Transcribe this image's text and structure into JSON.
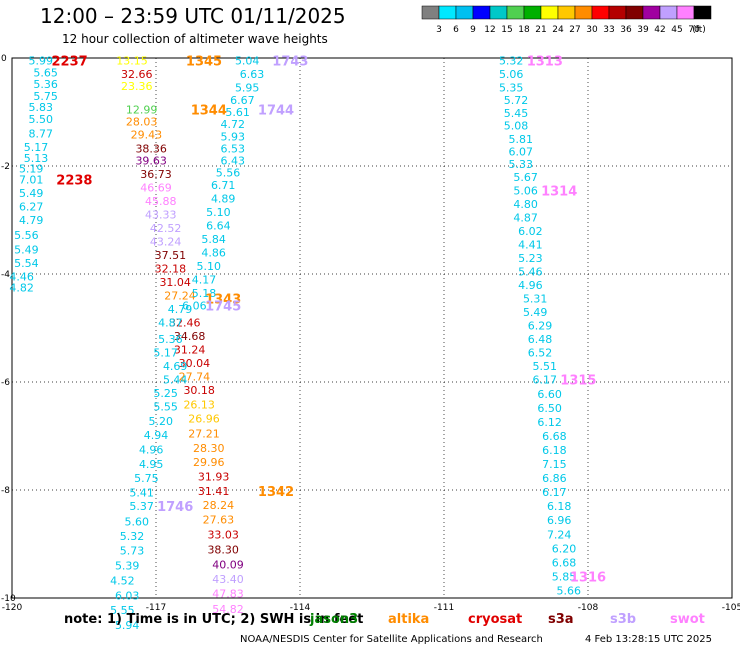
{
  "header": {
    "title": "12:00 – 23:59 UTC 01/11/2025",
    "subtitle": "12 hour collection of altimeter wave heights"
  },
  "scale": {
    "colors": [
      "#808080",
      "#00e8ff",
      "#00c0f0",
      "#0000ff",
      "#00c8c8",
      "#50d050",
      "#00b000",
      "#ffff00",
      "#ffc800",
      "#ff8c00",
      "#ff0000",
      "#b40000",
      "#800000",
      "#a000a0",
      "#c0a0ff",
      "#ff80ff",
      "#000000"
    ],
    "labels": [
      "3",
      "6",
      "9",
      "12",
      "15",
      "18",
      "21",
      "24",
      "27",
      "30",
      "33",
      "36",
      "39",
      "42",
      "45",
      "70",
      "(ft)"
    ]
  },
  "chart_data": {
    "type": "scatter",
    "title": "12:00 – 23:59 UTC 01/11/2025",
    "subtitle": "12 hour collection of altimeter wave heights",
    "xlabel": "",
    "ylabel": "",
    "xlim": [
      -120,
      -105
    ],
    "ylim": [
      -10,
      0
    ],
    "xticks": [
      -120,
      -117,
      -114,
      -111,
      -108,
      -105
    ],
    "yticks": [
      0,
      -2,
      -4,
      -6,
      -8,
      -10
    ],
    "xtick_labels": [
      "-120",
      "-117",
      "-114",
      "-111",
      "-108",
      "-105"
    ],
    "ytick_labels": [
      "0",
      "-2",
      "-4",
      "-6",
      "-8",
      "-10"
    ],
    "grid": true,
    "points": [
      {
        "x": -119.4,
        "y": -0.05,
        "v": "5.99",
        "c": "#00c8e8"
      },
      {
        "x": -119.3,
        "y": -0.27,
        "v": "5.65",
        "c": "#00c8e8"
      },
      {
        "x": -119.3,
        "y": -0.48,
        "v": "5.36",
        "c": "#00c8e8"
      },
      {
        "x": -119.3,
        "y": -0.7,
        "v": "5.75",
        "c": "#00c8e8"
      },
      {
        "x": -119.4,
        "y": -0.91,
        "v": "5.83",
        "c": "#00c8e8"
      },
      {
        "x": -119.4,
        "y": -1.13,
        "v": "5.50",
        "c": "#00c8e8"
      },
      {
        "x": -119.4,
        "y": -1.4,
        "v": "8.77",
        "c": "#00c8e8"
      },
      {
        "x": -119.5,
        "y": -1.65,
        "v": "5.17",
        "c": "#00c8e8"
      },
      {
        "x": -119.5,
        "y": -1.85,
        "v": "5.13",
        "c": "#00c8e8"
      },
      {
        "x": -119.6,
        "y": -2.05,
        "v": "5.19",
        "c": "#00c8e8"
      },
      {
        "x": -119.6,
        "y": -2.25,
        "v": "7.01",
        "c": "#00c8e8"
      },
      {
        "x": -119.6,
        "y": -2.5,
        "v": "5.49",
        "c": "#00c8e8"
      },
      {
        "x": -119.6,
        "y": -2.75,
        "v": "6.27",
        "c": "#00c8e8"
      },
      {
        "x": -119.6,
        "y": -3.0,
        "v": "4.79",
        "c": "#00c8e8"
      },
      {
        "x": -119.7,
        "y": -3.28,
        "v": "5.56",
        "c": "#00c8e8"
      },
      {
        "x": -119.7,
        "y": -3.55,
        "v": "5.49",
        "c": "#00c8e8"
      },
      {
        "x": -119.7,
        "y": -3.8,
        "v": "5.54",
        "c": "#00c8e8"
      },
      {
        "x": -119.8,
        "y": -4.05,
        "v": "4.46",
        "c": "#00c8e8"
      },
      {
        "x": -119.8,
        "y": -4.25,
        "v": "4.82",
        "c": "#00c8e8"
      },
      {
        "x": -117.5,
        "y": -0.05,
        "v": "13.15",
        "c": "#ffff00"
      },
      {
        "x": -117.4,
        "y": -0.3,
        "v": "32.66",
        "c": "#c80000"
      },
      {
        "x": -117.4,
        "y": -0.52,
        "v": "23.36",
        "c": "#ffff00"
      },
      {
        "x": -117.3,
        "y": -0.95,
        "v": "12.99",
        "c": "#50d050"
      },
      {
        "x": -117.3,
        "y": -1.18,
        "v": "28.03",
        "c": "#ff8c00"
      },
      {
        "x": -117.2,
        "y": -1.42,
        "v": "29.43",
        "c": "#ff8c00"
      },
      {
        "x": -117.1,
        "y": -1.68,
        "v": "38.36",
        "c": "#800000"
      },
      {
        "x": -117.1,
        "y": -1.9,
        "v": "39.63",
        "c": "#800080"
      },
      {
        "x": -117.0,
        "y": -2.15,
        "v": "36.73",
        "c": "#800000"
      },
      {
        "x": -117.0,
        "y": -2.4,
        "v": "46.69",
        "c": "#ff80ff"
      },
      {
        "x": -116.9,
        "y": -2.65,
        "v": "45.88",
        "c": "#ff80ff"
      },
      {
        "x": -116.9,
        "y": -2.9,
        "v": "43.33",
        "c": "#c0a0ff"
      },
      {
        "x": -116.8,
        "y": -3.15,
        "v": "42.52",
        "c": "#c0a0ff"
      },
      {
        "x": -116.8,
        "y": -3.4,
        "v": "43.24",
        "c": "#c0a0ff"
      },
      {
        "x": -116.7,
        "y": -3.65,
        "v": "37.51",
        "c": "#800000"
      },
      {
        "x": -116.7,
        "y": -3.9,
        "v": "32.18",
        "c": "#c80000"
      },
      {
        "x": -116.6,
        "y": -4.15,
        "v": "31.04",
        "c": "#c80000"
      },
      {
        "x": -116.5,
        "y": -4.4,
        "v": "27.24",
        "c": "#ff8c00"
      },
      {
        "x": -116.5,
        "y": -4.65,
        "v": "4.79",
        "c": "#00c8e8"
      },
      {
        "x": -116.4,
        "y": -4.9,
        "v": "32.46",
        "c": "#c80000"
      },
      {
        "x": -116.3,
        "y": -5.15,
        "v": "34.68",
        "c": "#800000"
      },
      {
        "x": -116.3,
        "y": -5.4,
        "v": "31.24",
        "c": "#c80000"
      },
      {
        "x": -116.2,
        "y": -5.65,
        "v": "30.04",
        "c": "#c80000"
      },
      {
        "x": -116.2,
        "y": -5.9,
        "v": "27.74",
        "c": "#ff8c00"
      },
      {
        "x": -116.1,
        "y": -6.15,
        "v": "30.18",
        "c": "#c80000"
      },
      {
        "x": -116.1,
        "y": -6.42,
        "v": "26.13",
        "c": "#ffc800"
      },
      {
        "x": -116.0,
        "y": -6.68,
        "v": "26.96",
        "c": "#ffc800"
      },
      {
        "x": -116.0,
        "y": -6.95,
        "v": "27.21",
        "c": "#ff8c00"
      },
      {
        "x": -115.9,
        "y": -7.22,
        "v": "28.30",
        "c": "#ff8c00"
      },
      {
        "x": -115.9,
        "y": -7.48,
        "v": "29.96",
        "c": "#ff8c00"
      },
      {
        "x": -115.8,
        "y": -7.75,
        "v": "31.93",
        "c": "#c80000"
      },
      {
        "x": -115.8,
        "y": -8.02,
        "v": "31.41",
        "c": "#c80000"
      },
      {
        "x": -115.7,
        "y": -8.28,
        "v": "28.24",
        "c": "#ff8c00"
      },
      {
        "x": -115.7,
        "y": -8.55,
        "v": "27.63",
        "c": "#ff8c00"
      },
      {
        "x": -115.6,
        "y": -8.82,
        "v": "33.03",
        "c": "#c80000"
      },
      {
        "x": -115.6,
        "y": -9.1,
        "v": "38.30",
        "c": "#800000"
      },
      {
        "x": -115.5,
        "y": -9.38,
        "v": "40.09",
        "c": "#800080"
      },
      {
        "x": -115.5,
        "y": -9.65,
        "v": "43.40",
        "c": "#c0a0ff"
      },
      {
        "x": -115.5,
        "y": -9.92,
        "v": "47.83",
        "c": "#ff80ff"
      },
      {
        "x": -115.5,
        "y": -10.2,
        "v": "54.82",
        "c": "#ff80ff"
      },
      {
        "x": -115.1,
        "y": -0.05,
        "v": "5.04",
        "c": "#00c8e8"
      },
      {
        "x": -115.0,
        "y": -0.3,
        "v": "6.63",
        "c": "#00c8e8"
      },
      {
        "x": -115.1,
        "y": -0.55,
        "v": "5.95",
        "c": "#00c8e8"
      },
      {
        "x": -115.2,
        "y": -0.78,
        "v": "6.67",
        "c": "#00c8e8"
      },
      {
        "x": -115.3,
        "y": -1.0,
        "v": "5.61",
        "c": "#00c8e8"
      },
      {
        "x": -115.4,
        "y": -1.22,
        "v": "4.72",
        "c": "#00c8e8"
      },
      {
        "x": -115.4,
        "y": -1.45,
        "v": "5.93",
        "c": "#00c8e8"
      },
      {
        "x": -115.4,
        "y": -1.68,
        "v": "6.53",
        "c": "#00c8e8"
      },
      {
        "x": -115.4,
        "y": -1.9,
        "v": "6.43",
        "c": "#00c8e8"
      },
      {
        "x": -115.5,
        "y": -2.12,
        "v": "5.56",
        "c": "#00c8e8"
      },
      {
        "x": -115.6,
        "y": -2.35,
        "v": "6.71",
        "c": "#00c8e8"
      },
      {
        "x": -115.6,
        "y": -2.6,
        "v": "4.89",
        "c": "#00c8e8"
      },
      {
        "x": -115.7,
        "y": -2.85,
        "v": "5.10",
        "c": "#00c8e8"
      },
      {
        "x": -115.7,
        "y": -3.1,
        "v": "6.64",
        "c": "#00c8e8"
      },
      {
        "x": -115.8,
        "y": -3.35,
        "v": "5.84",
        "c": "#00c8e8"
      },
      {
        "x": -115.8,
        "y": -3.6,
        "v": "4.86",
        "c": "#00c8e8"
      },
      {
        "x": -115.9,
        "y": -3.85,
        "v": "5.10",
        "c": "#00c8e8"
      },
      {
        "x": -116.0,
        "y": -4.1,
        "v": "4.17",
        "c": "#00c8e8"
      },
      {
        "x": -116.0,
        "y": -4.35,
        "v": "5.18",
        "c": "#00c8e8"
      },
      {
        "x": -116.2,
        "y": -4.58,
        "v": "6.06",
        "c": "#00c8e8"
      },
      {
        "x": -116.7,
        "y": -4.9,
        "v": "4.87",
        "c": "#00c8e8"
      },
      {
        "x": -116.7,
        "y": -5.2,
        "v": "5.36",
        "c": "#00c8e8"
      },
      {
        "x": -116.8,
        "y": -5.45,
        "v": "5.17",
        "c": "#00c8e8"
      },
      {
        "x": -116.6,
        "y": -5.7,
        "v": "4.69",
        "c": "#00c8e8"
      },
      {
        "x": -116.6,
        "y": -5.95,
        "v": "5.44",
        "c": "#00c8e8"
      },
      {
        "x": -116.8,
        "y": -6.2,
        "v": "5.25",
        "c": "#00c8e8"
      },
      {
        "x": -116.8,
        "y": -6.45,
        "v": "5.55",
        "c": "#00c8e8"
      },
      {
        "x": -116.9,
        "y": -6.72,
        "v": "5.20",
        "c": "#00c8e8"
      },
      {
        "x": -117.0,
        "y": -6.98,
        "v": "4.94",
        "c": "#00c8e8"
      },
      {
        "x": -117.1,
        "y": -7.25,
        "v": "4.96",
        "c": "#00c8e8"
      },
      {
        "x": -117.1,
        "y": -7.52,
        "v": "4.95",
        "c": "#00c8e8"
      },
      {
        "x": -117.2,
        "y": -7.78,
        "v": "5.75",
        "c": "#00c8e8"
      },
      {
        "x": -117.3,
        "y": -8.05,
        "v": "5.41",
        "c": "#00c8e8"
      },
      {
        "x": -117.3,
        "y": -8.3,
        "v": "5.37",
        "c": "#00c8e8"
      },
      {
        "x": -117.4,
        "y": -8.58,
        "v": "5.60",
        "c": "#00c8e8"
      },
      {
        "x": -117.5,
        "y": -8.85,
        "v": "5.32",
        "c": "#00c8e8"
      },
      {
        "x": -117.5,
        "y": -9.12,
        "v": "5.73",
        "c": "#00c8e8"
      },
      {
        "x": -117.6,
        "y": -9.4,
        "v": "5.39",
        "c": "#00c8e8"
      },
      {
        "x": -117.7,
        "y": -9.68,
        "v": "4.52",
        "c": "#00c8e8"
      },
      {
        "x": -117.6,
        "y": -9.95,
        "v": "6.03",
        "c": "#00c8e8"
      },
      {
        "x": -117.7,
        "y": -10.22,
        "v": "5.55",
        "c": "#00c8e8"
      },
      {
        "x": -117.6,
        "y": -10.5,
        "v": "5.94",
        "c": "#00c8e8"
      },
      {
        "x": -109.6,
        "y": -0.05,
        "v": "5.32",
        "c": "#00c8e8"
      },
      {
        "x": -109.6,
        "y": -0.3,
        "v": "5.06",
        "c": "#00c8e8"
      },
      {
        "x": -109.6,
        "y": -0.55,
        "v": "5.35",
        "c": "#00c8e8"
      },
      {
        "x": -109.5,
        "y": -0.78,
        "v": "5.72",
        "c": "#00c8e8"
      },
      {
        "x": -109.5,
        "y": -1.02,
        "v": "5.45",
        "c": "#00c8e8"
      },
      {
        "x": -109.5,
        "y": -1.25,
        "v": "5.08",
        "c": "#00c8e8"
      },
      {
        "x": -109.4,
        "y": -1.5,
        "v": "5.81",
        "c": "#00c8e8"
      },
      {
        "x": -109.4,
        "y": -1.73,
        "v": "6.07",
        "c": "#00c8e8"
      },
      {
        "x": -109.4,
        "y": -1.96,
        "v": "5.33",
        "c": "#00c8e8"
      },
      {
        "x": -109.3,
        "y": -2.2,
        "v": "5.67",
        "c": "#00c8e8"
      },
      {
        "x": -109.3,
        "y": -2.45,
        "v": "5.06",
        "c": "#00c8e8"
      },
      {
        "x": -109.3,
        "y": -2.7,
        "v": "4.80",
        "c": "#00c8e8"
      },
      {
        "x": -109.3,
        "y": -2.95,
        "v": "4.87",
        "c": "#00c8e8"
      },
      {
        "x": -109.2,
        "y": -3.2,
        "v": "6.02",
        "c": "#00c8e8"
      },
      {
        "x": -109.2,
        "y": -3.45,
        "v": "4.41",
        "c": "#00c8e8"
      },
      {
        "x": -109.2,
        "y": -3.7,
        "v": "5.23",
        "c": "#00c8e8"
      },
      {
        "x": -109.2,
        "y": -3.95,
        "v": "5.46",
        "c": "#00c8e8"
      },
      {
        "x": -109.2,
        "y": -4.2,
        "v": "4.96",
        "c": "#00c8e8"
      },
      {
        "x": -109.1,
        "y": -4.45,
        "v": "5.31",
        "c": "#00c8e8"
      },
      {
        "x": -109.1,
        "y": -4.7,
        "v": "5.49",
        "c": "#00c8e8"
      },
      {
        "x": -109.0,
        "y": -4.95,
        "v": "6.29",
        "c": "#00c8e8"
      },
      {
        "x": -109.0,
        "y": -5.2,
        "v": "6.48",
        "c": "#00c8e8"
      },
      {
        "x": -109.0,
        "y": -5.45,
        "v": "6.52",
        "c": "#00c8e8"
      },
      {
        "x": -108.9,
        "y": -5.7,
        "v": "5.51",
        "c": "#00c8e8"
      },
      {
        "x": -108.9,
        "y": -5.95,
        "v": "6.17",
        "c": "#00c8e8"
      },
      {
        "x": -108.8,
        "y": -6.22,
        "v": "6.60",
        "c": "#00c8e8"
      },
      {
        "x": -108.8,
        "y": -6.48,
        "v": "6.50",
        "c": "#00c8e8"
      },
      {
        "x": -108.8,
        "y": -6.74,
        "v": "6.12",
        "c": "#00c8e8"
      },
      {
        "x": -108.7,
        "y": -7.0,
        "v": "6.68",
        "c": "#00c8e8"
      },
      {
        "x": -108.7,
        "y": -7.26,
        "v": "6.18",
        "c": "#00c8e8"
      },
      {
        "x": -108.7,
        "y": -7.52,
        "v": "7.15",
        "c": "#00c8e8"
      },
      {
        "x": -108.7,
        "y": -7.78,
        "v": "6.86",
        "c": "#00c8e8"
      },
      {
        "x": -108.7,
        "y": -8.04,
        "v": "6.17",
        "c": "#00c8e8"
      },
      {
        "x": -108.6,
        "y": -8.3,
        "v": "6.18",
        "c": "#00c8e8"
      },
      {
        "x": -108.6,
        "y": -8.56,
        "v": "6.96",
        "c": "#00c8e8"
      },
      {
        "x": -108.6,
        "y": -8.82,
        "v": "7.24",
        "c": "#00c8e8"
      },
      {
        "x": -108.5,
        "y": -9.08,
        "v": "6.20",
        "c": "#00c8e8"
      },
      {
        "x": -108.5,
        "y": -9.34,
        "v": "6.68",
        "c": "#00c8e8"
      },
      {
        "x": -108.5,
        "y": -9.6,
        "v": "5.85",
        "c": "#00c8e8"
      },
      {
        "x": -108.4,
        "y": -9.86,
        "v": "5.66",
        "c": "#00c8e8"
      }
    ],
    "orbit_labels": [
      {
        "x": -118.8,
        "y": -0.05,
        "v": "2237",
        "c": "#e00000"
      },
      {
        "x": -116.0,
        "y": -0.05,
        "v": "1345",
        "c": "#ff8c00"
      },
      {
        "x": -114.2,
        "y": -0.05,
        "v": "1743",
        "c": "#c0a0ff"
      },
      {
        "x": -115.9,
        "y": -0.95,
        "v": "1344",
        "c": "#ff8c00"
      },
      {
        "x": -114.5,
        "y": -0.95,
        "v": "1744",
        "c": "#c0a0ff"
      },
      {
        "x": -118.7,
        "y": -2.25,
        "v": "2238",
        "c": "#e00000"
      },
      {
        "x": -115.6,
        "y": -4.45,
        "v": "1343",
        "c": "#ff8c00"
      },
      {
        "x": -115.6,
        "y": -4.58,
        "v": "1745",
        "c": "#c0a0ff"
      },
      {
        "x": -108.9,
        "y": -0.05,
        "v": "1313",
        "c": "#ff80ff"
      },
      {
        "x": -108.6,
        "y": -2.45,
        "v": "1314",
        "c": "#ff80ff"
      },
      {
        "x": -108.2,
        "y": -5.95,
        "v": "1315",
        "c": "#ff80ff"
      },
      {
        "x": -114.5,
        "y": -8.02,
        "v": "1342",
        "c": "#ff8c00"
      },
      {
        "x": -116.6,
        "y": -8.3,
        "v": "1746",
        "c": "#c0a0ff"
      },
      {
        "x": -108.0,
        "y": -9.6,
        "v": "1316",
        "c": "#ff80ff"
      }
    ]
  },
  "footer": {
    "note": "note: 1) Time is in UTC; 2) SWH is in feet",
    "satellites": [
      {
        "name": "jason3",
        "color": "#008000"
      },
      {
        "name": "altika",
        "color": "#ff8c00"
      },
      {
        "name": "cryosat",
        "color": "#e00000"
      },
      {
        "name": "s3a",
        "color": "#800000"
      },
      {
        "name": "s3b",
        "color": "#c0a0ff"
      },
      {
        "name": "swot",
        "color": "#ff80ff"
      }
    ],
    "credit": "NOAA/NESDIS Center for Satellite Applications and Research",
    "timestamp": "4 Feb 13:28:15 UTC 2025"
  }
}
